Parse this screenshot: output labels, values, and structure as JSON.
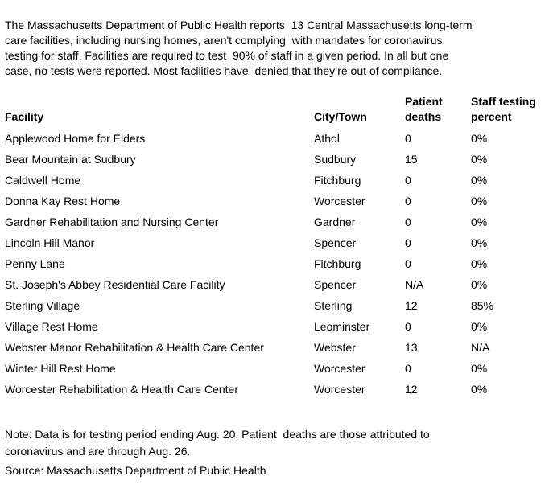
{
  "page": {
    "intro": "The Massachusetts Department of Public Health reports  13 Central Massachusetts long-term\ncare facilities, including nursing homes, aren't complying  with mandates for coronavirus\ntesting for staff. Facilities are required to test  90% of staff in a given period. In all but one\ncase, no tests were reported. Most facilities have  denied that they’re out of compliance.",
    "note": "Note: Data is for testing period ending Aug. 20. Patient  deaths are those attributed to\ncoronavirus and are through Aug. 26.",
    "source": "Source: Massachusetts Department of Public Health"
  },
  "colors": {
    "text": "#000000",
    "background": "#ffffff"
  },
  "chart_data": {
    "type": "table",
    "columns": [
      "Facility",
      "City/Town",
      "Patient deaths",
      "Staff testing percent"
    ],
    "rows": [
      [
        "Applewood Home for Elders",
        "Athol",
        "0",
        "0%"
      ],
      [
        "Bear Mountain at Sudbury",
        "Sudbury",
        "15",
        "0%"
      ],
      [
        "Caldwell Home",
        "Fitchburg",
        "0",
        "0%"
      ],
      [
        "Donna Kay Rest Home",
        "Worcester",
        "0",
        "0%"
      ],
      [
        "Gardner Rehabilitation and Nursing Center",
        "Gardner",
        "0",
        "0%"
      ],
      [
        "Lincoln Hill Manor",
        "Spencer",
        "0",
        "0%"
      ],
      [
        "Penny Lane",
        "Fitchburg",
        "0",
        "0%"
      ],
      [
        "St. Joseph's Abbey Residential Care Facility",
        "Spencer",
        "N/A",
        "0%"
      ],
      [
        "Sterling Village",
        "Sterling",
        "12",
        "85%"
      ],
      [
        "Village Rest Home",
        "Leominster",
        "0",
        "0%"
      ],
      [
        "Webster Manor Rehabilitation & Health Care Center",
        "Webster",
        "13",
        "N/A"
      ],
      [
        "Winter Hill Rest Home",
        "Worcester",
        "0",
        "0%"
      ],
      [
        "Worcester Rehabilitation & Health Care Center",
        "Worcester",
        "12",
        "0%"
      ]
    ],
    "title": "",
    "layout": {
      "grid": false,
      "header_bold": true
    }
  }
}
